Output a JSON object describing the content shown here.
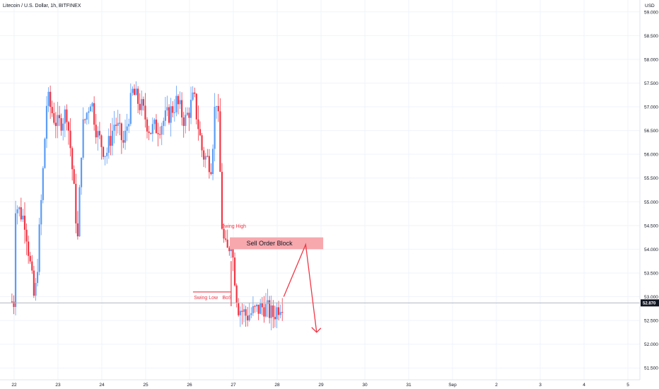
{
  "header": {
    "title": "Litecoin / U.S. Dollar, 1h, BITFINEX",
    "currency": "USD"
  },
  "colors": {
    "up": "#5b9cf6",
    "down": "#f23645",
    "annotation": "#f23645",
    "order_block_fill": "#f7a8ad",
    "grid": "#f0f3fa",
    "axis_text": "#131722",
    "price_line": "#b2b5be"
  },
  "chart_data": {
    "type": "candlestick",
    "title": "Litecoin / U.S. Dollar, 1h, BITFINEX",
    "ylabel": "USD",
    "ylim": [
      51.25,
      59.25
    ],
    "y_ticks": [
      51.5,
      52.0,
      52.5,
      53.0,
      53.5,
      54.0,
      54.5,
      55.0,
      55.5,
      56.0,
      56.5,
      57.0,
      57.5,
      58.0,
      58.5,
      59.0
    ],
    "y_tick_labels": [
      "51.500",
      "52.000",
      "52.500",
      "53.000",
      "53.500",
      "54.000",
      "54.500",
      "55.000",
      "55.500",
      "56.000",
      "56.500",
      "57.000",
      "57.500",
      "58.000",
      "58.500",
      "59.000"
    ],
    "x_tick_labels": [
      "22",
      "23",
      "24",
      "25",
      "26",
      "27",
      "28",
      "29",
      "30",
      "31",
      "Sep",
      "2",
      "3",
      "4",
      "5"
    ],
    "last_price": 52.87,
    "last_price_label": "52.870",
    "series_hourly_close_anchors": {
      "day": [
        22.0,
        22.25,
        22.45,
        22.5,
        22.65,
        22.75,
        22.9,
        23.0,
        23.2,
        23.3,
        23.45,
        23.55,
        23.75,
        23.9,
        24.1,
        24.3,
        24.5,
        24.7,
        24.9,
        25.1,
        25.3,
        25.5,
        25.7,
        25.9,
        26.1,
        26.3,
        26.5,
        26.6,
        26.65,
        26.75,
        26.85,
        26.95,
        27.1,
        27.3,
        27.5,
        27.7,
        27.9,
        28.1
      ],
      "close": [
        55.0,
        54.6,
        53.0,
        53.2,
        55.5,
        57.2,
        56.8,
        56.6,
        56.9,
        56.0,
        54.2,
        56.5,
        57.2,
        56.4,
        56.0,
        56.7,
        56.2,
        57.3,
        57.0,
        56.5,
        56.6,
        56.8,
        57.1,
        56.7,
        57.2,
        56.0,
        55.8,
        57.3,
        56.9,
        54.3,
        53.9,
        54.2,
        52.8,
        52.6,
        52.7,
        52.8,
        52.6,
        52.9
      ]
    },
    "annotations": {
      "swing_high": "Swing High",
      "swing_low": "Swing Low",
      "bos": "BoS",
      "order_block": "Sell Order Block"
    },
    "order_block_range": [
      54.0,
      54.25
    ],
    "swing_low_level": 53.1,
    "projection": [
      {
        "day": 28.15,
        "price": 53.0
      },
      {
        "day": 28.65,
        "price": 54.1
      },
      {
        "day": 28.9,
        "price": 52.25
      }
    ]
  }
}
